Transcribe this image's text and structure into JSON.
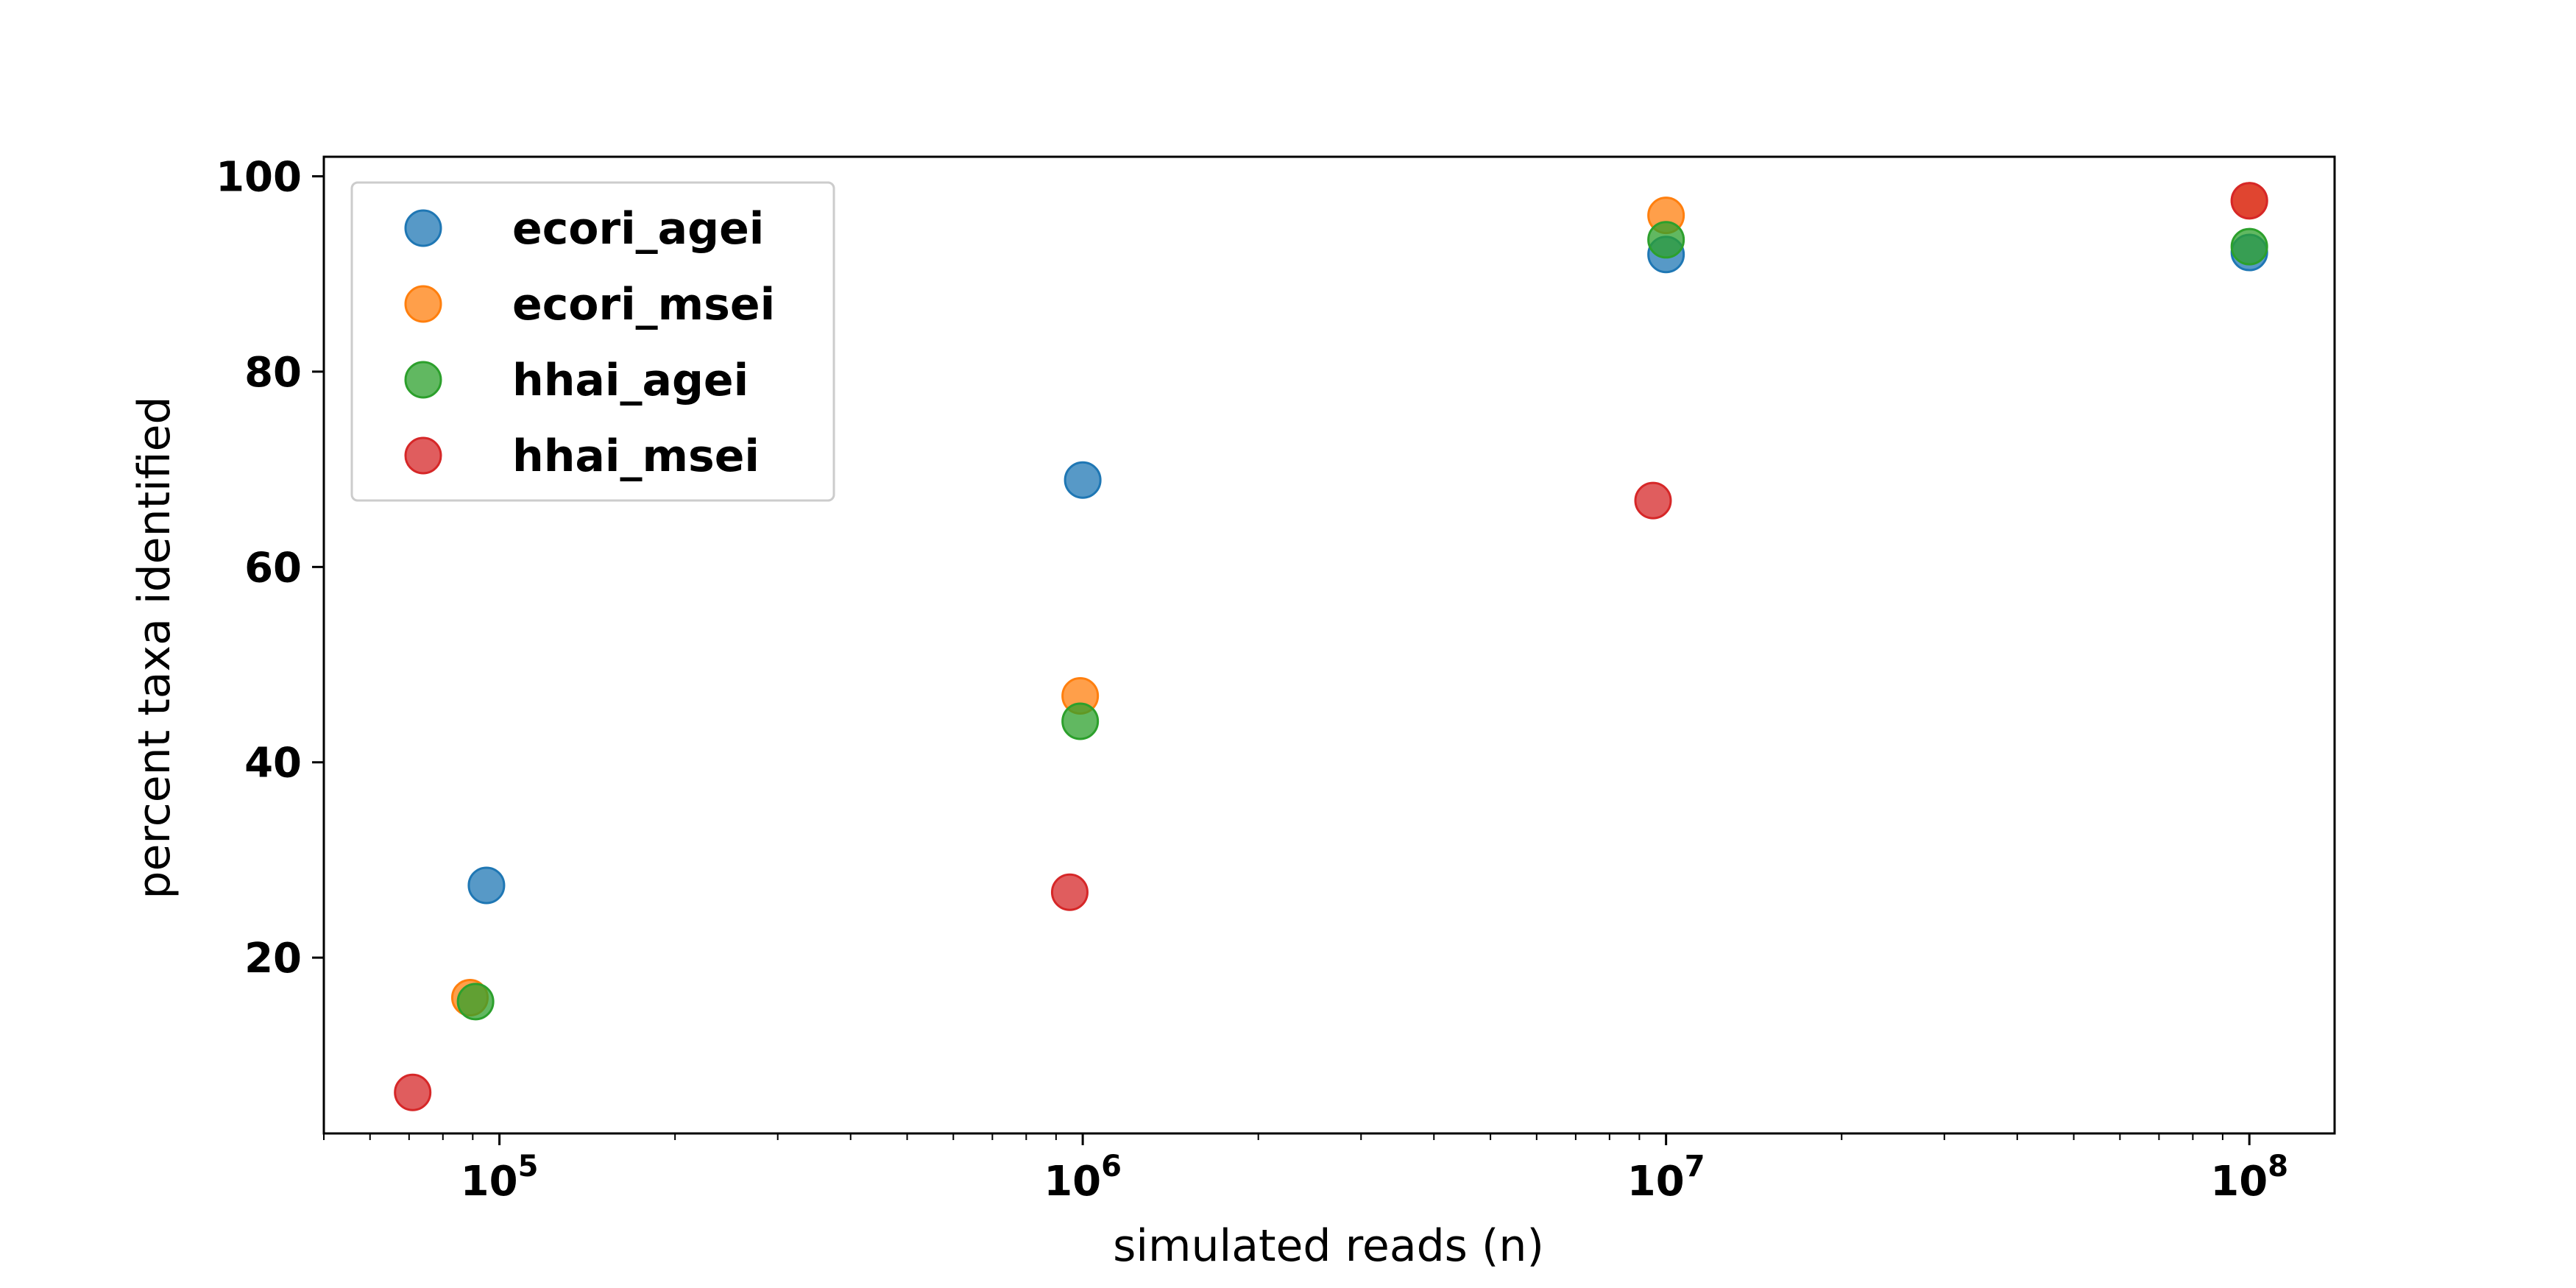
{
  "chart_data": {
    "type": "scatter",
    "xlabel": "simulated reads (n)",
    "ylabel": "percent taxa identified",
    "xscale": "log",
    "xlim": [
      50000,
      140000000
    ],
    "ylim": [
      2,
      102
    ],
    "x_ticks": [
      {
        "value": 100000,
        "base": "10",
        "exp": "5"
      },
      {
        "value": 1000000,
        "base": "10",
        "exp": "6"
      },
      {
        "value": 10000000,
        "base": "10",
        "exp": "7"
      },
      {
        "value": 100000000,
        "base": "10",
        "exp": "8"
      }
    ],
    "y_ticks": [
      {
        "value": 20,
        "label": "20"
      },
      {
        "value": 40,
        "label": "40"
      },
      {
        "value": 60,
        "label": "60"
      },
      {
        "value": 80,
        "label": "80"
      },
      {
        "value": 100,
        "label": "100"
      }
    ],
    "grid": false,
    "legend_position": "top-left",
    "series": [
      {
        "name": "ecori_agei",
        "color": "#1f77b4",
        "points": [
          {
            "x": 95000,
            "y": 27.4
          },
          {
            "x": 1000000,
            "y": 68.9
          },
          {
            "x": 10000000,
            "y": 92.0
          },
          {
            "x": 100000000,
            "y": 92.2
          }
        ]
      },
      {
        "name": "ecori_msei",
        "color": "#ff7f0e",
        "points": [
          {
            "x": 89000,
            "y": 15.9
          },
          {
            "x": 990000,
            "y": 46.8
          },
          {
            "x": 10000000,
            "y": 96.0
          },
          {
            "x": 100000000,
            "y": 97.5
          }
        ]
      },
      {
        "name": "hhai_agei",
        "color": "#2ca02c",
        "points": [
          {
            "x": 91000,
            "y": 15.5
          },
          {
            "x": 990000,
            "y": 44.2
          },
          {
            "x": 10000000,
            "y": 93.5
          },
          {
            "x": 100000000,
            "y": 92.8
          }
        ]
      },
      {
        "name": "hhai_msei",
        "color": "#d62728",
        "points": [
          {
            "x": 71000,
            "y": 6.2
          },
          {
            "x": 950000,
            "y": 26.7
          },
          {
            "x": 9500000,
            "y": 66.8
          },
          {
            "x": 100000000,
            "y": 97.5
          }
        ]
      }
    ]
  }
}
